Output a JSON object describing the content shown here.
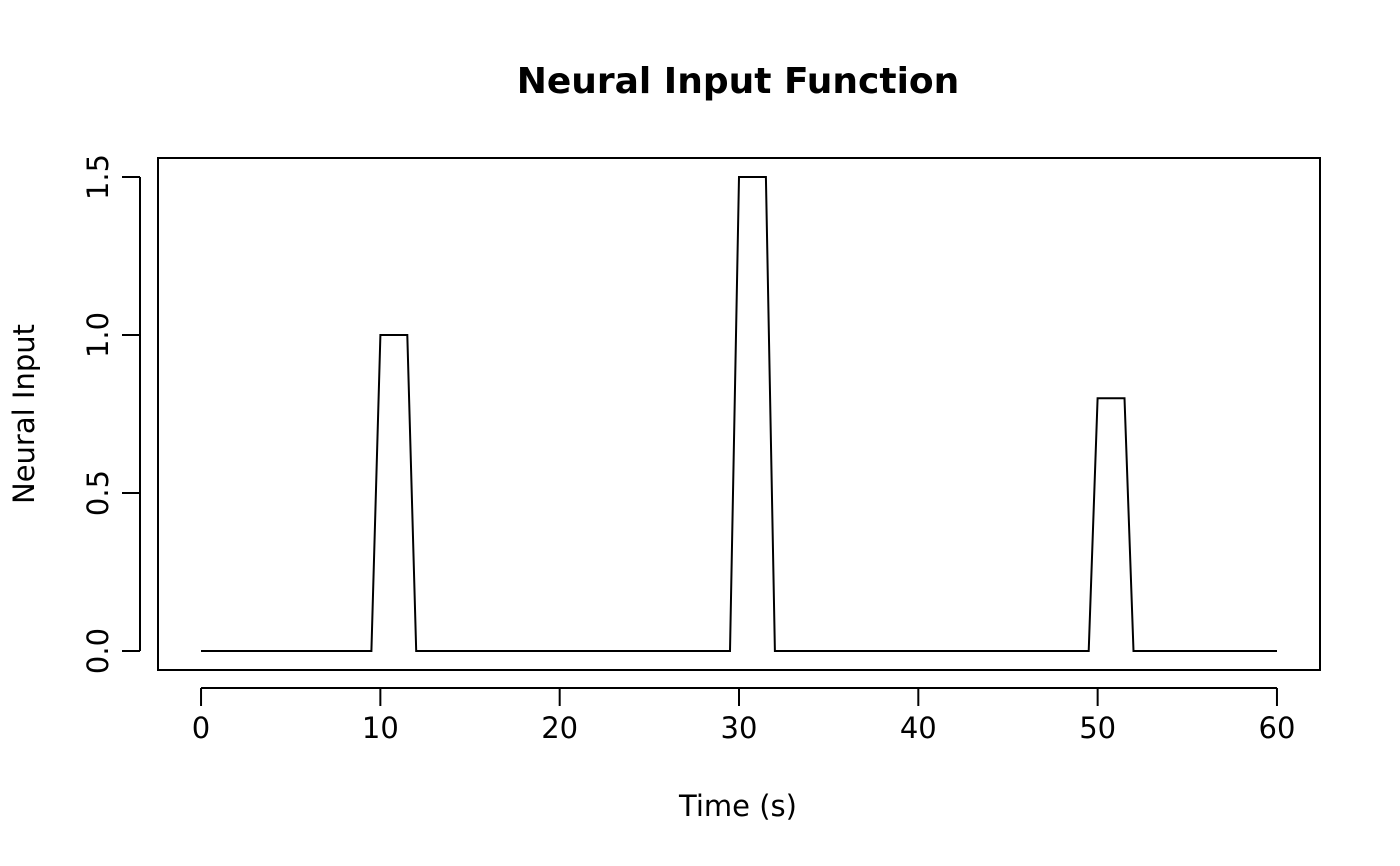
{
  "chart_data": {
    "type": "line",
    "title": "Neural Input Function",
    "xlabel": "Time (s)",
    "ylabel": "Neural Input",
    "xlim": [
      -2.4,
      62.4
    ],
    "ylim": [
      -0.06,
      1.56
    ],
    "x_ticks": [
      0,
      10,
      20,
      30,
      40,
      50,
      60
    ],
    "x_tick_labels": [
      "0",
      "10",
      "20",
      "30",
      "40",
      "50",
      "60"
    ],
    "y_ticks": [
      0,
      0.5,
      1,
      1.5
    ],
    "y_tick_labels": [
      "0.0",
      "0.5",
      "1.0",
      "1.5"
    ],
    "grid": false,
    "series": [
      {
        "color": "#000000",
        "x": [
          0,
          9.5,
          10,
          11.5,
          12,
          29.5,
          30,
          31.5,
          32,
          49.5,
          50,
          51.5,
          52,
          60
        ],
        "y": [
          0,
          0,
          1.0,
          1.0,
          0,
          0,
          1.5,
          1.5,
          0,
          0,
          0.8,
          0.8,
          0,
          0
        ]
      }
    ]
  }
}
